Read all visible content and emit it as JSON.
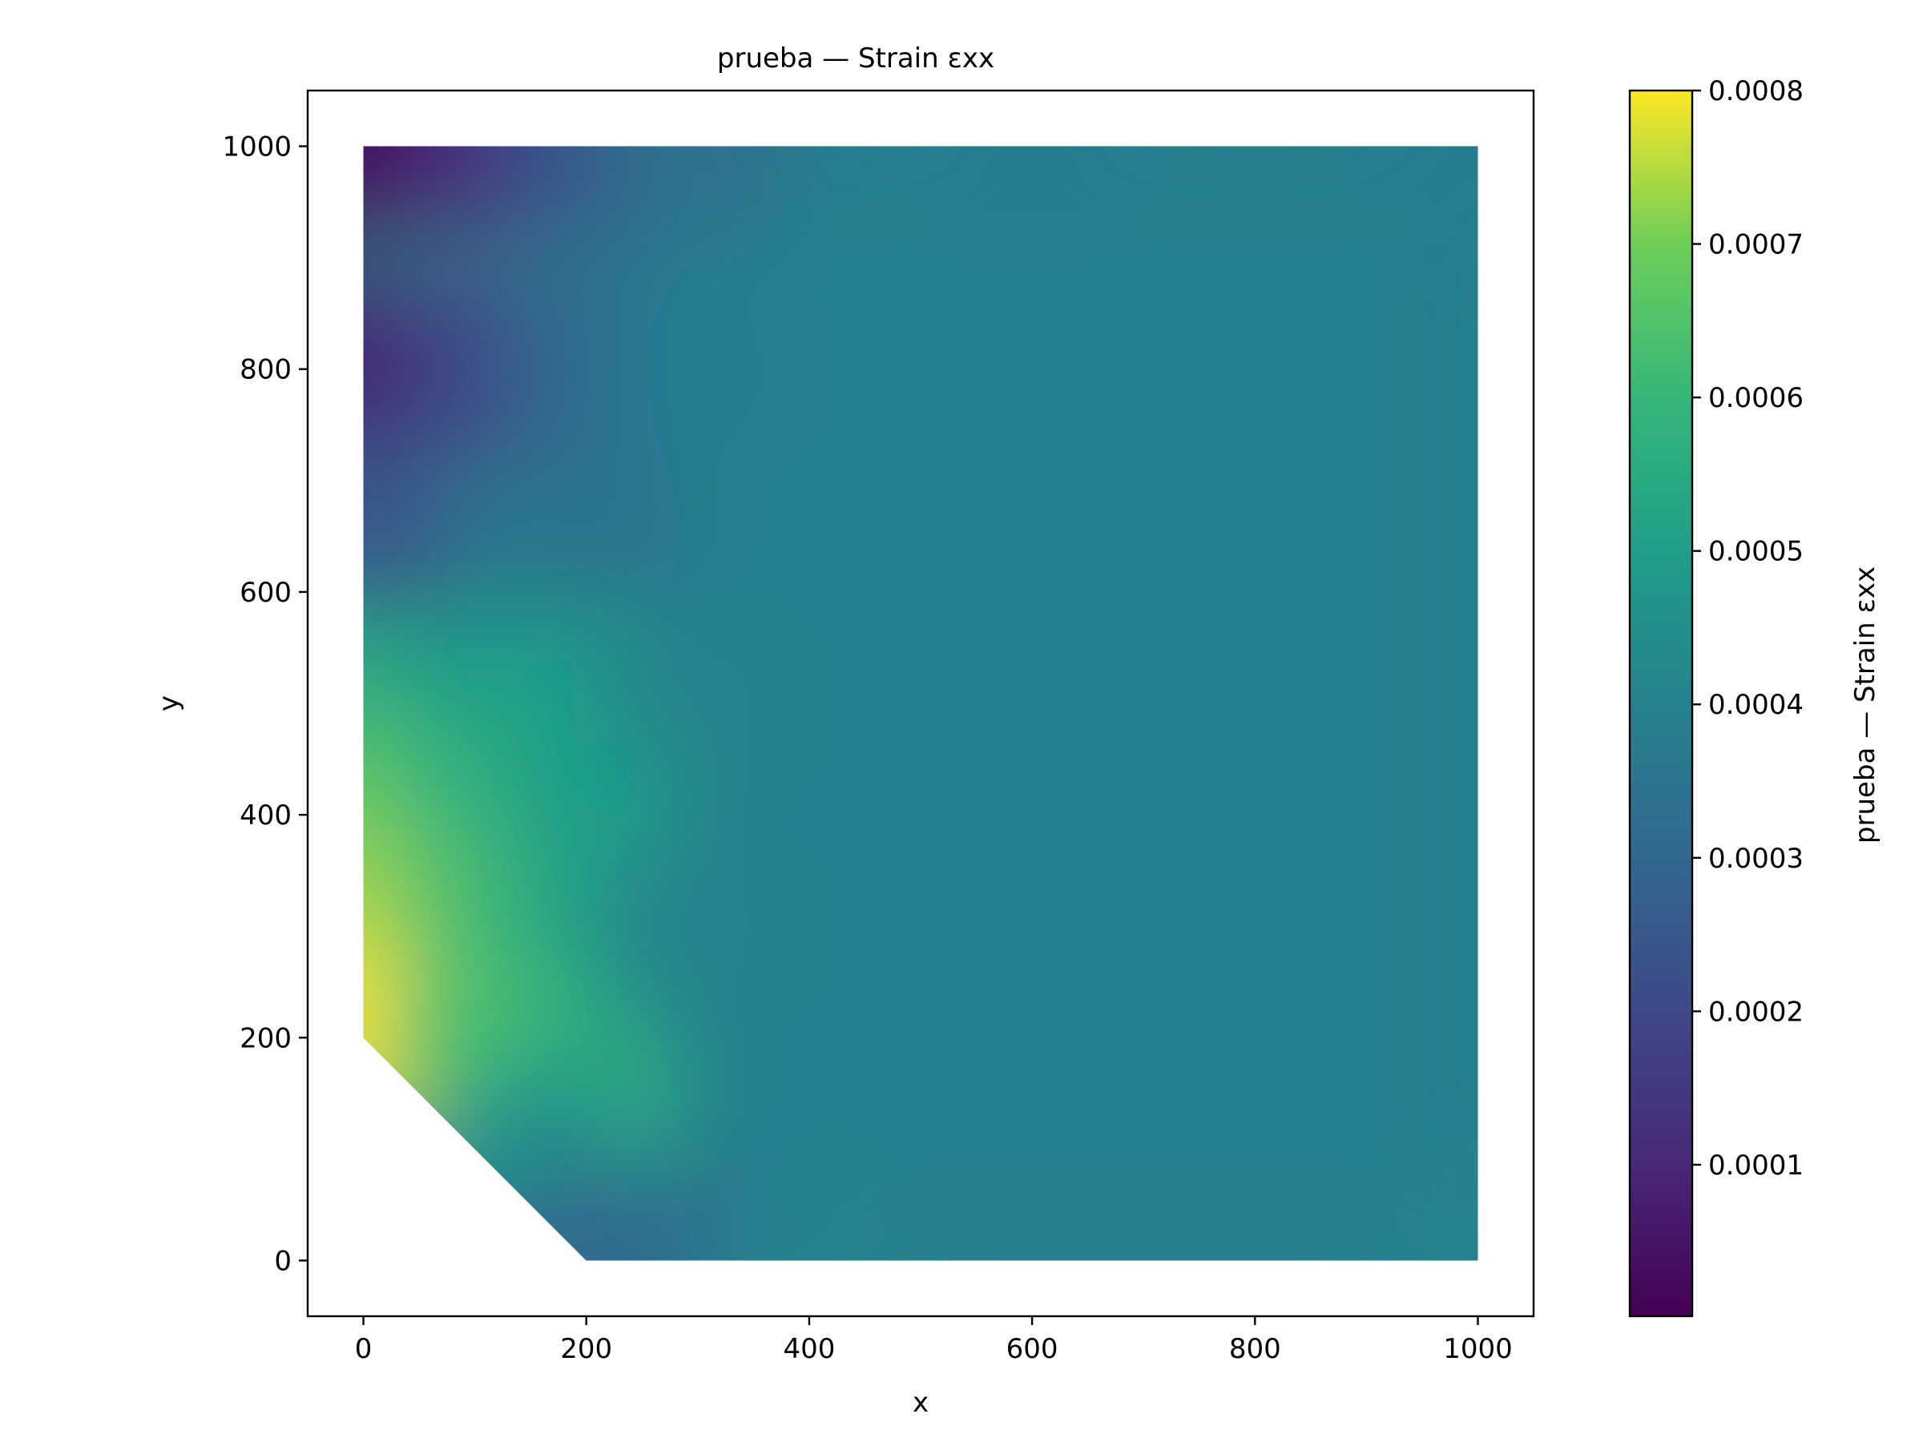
{
  "chart_data": {
    "type": "heatmap",
    "title": "prueba — Strain εxx",
    "xlabel": "x",
    "ylabel": "y",
    "xlim": [
      -50,
      1050
    ],
    "ylim": [
      -50,
      1050
    ],
    "xticks": [
      0,
      200,
      400,
      600,
      800,
      1000
    ],
    "yticks": [
      0,
      200,
      400,
      600,
      800,
      1000
    ],
    "xtick_labels": [
      "0",
      "200",
      "400",
      "600",
      "800",
      "1000"
    ],
    "ytick_labels": [
      "0",
      "200",
      "400",
      "600",
      "800",
      "1000"
    ],
    "grid": false,
    "colormap": "viridis",
    "domain_polygon": [
      [
        200,
        0
      ],
      [
        1000,
        0
      ],
      [
        1000,
        1000
      ],
      [
        0,
        1000
      ],
      [
        0,
        200
      ]
    ],
    "field_samples": [
      {
        "x": 0,
        "y": 1000,
        "value": 0.0
      },
      {
        "x": 100,
        "y": 1000,
        "value": 0.0001
      },
      {
        "x": 200,
        "y": 1000,
        "value": 0.00024
      },
      {
        "x": 300,
        "y": 1000,
        "value": 0.00034
      },
      {
        "x": 600,
        "y": 1000,
        "value": 0.00038
      },
      {
        "x": 1000,
        "y": 1000,
        "value": 0.00038
      },
      {
        "x": 0,
        "y": 800,
        "value": 7e-05
      },
      {
        "x": 100,
        "y": 800,
        "value": 0.00018
      },
      {
        "x": 200,
        "y": 800,
        "value": 0.0003
      },
      {
        "x": 300,
        "y": 800,
        "value": 0.00038
      },
      {
        "x": 0,
        "y": 650,
        "value": 0.00025
      },
      {
        "x": 200,
        "y": 650,
        "value": 0.00035
      },
      {
        "x": 0,
        "y": 500,
        "value": 0.00055
      },
      {
        "x": 100,
        "y": 500,
        "value": 0.0005
      },
      {
        "x": 200,
        "y": 500,
        "value": 0.0005
      },
      {
        "x": 300,
        "y": 500,
        "value": 0.0004
      },
      {
        "x": 0,
        "y": 400,
        "value": 0.00068
      },
      {
        "x": 100,
        "y": 400,
        "value": 0.00058
      },
      {
        "x": 200,
        "y": 400,
        "value": 0.0005
      },
      {
        "x": 0,
        "y": 300,
        "value": 0.00074
      },
      {
        "x": 100,
        "y": 300,
        "value": 0.00064
      },
      {
        "x": 200,
        "y": 300,
        "value": 0.00052
      },
      {
        "x": 300,
        "y": 300,
        "value": 0.0004
      },
      {
        "x": 0,
        "y": 200,
        "value": 0.0008
      },
      {
        "x": 100,
        "y": 200,
        "value": 0.00064
      },
      {
        "x": 200,
        "y": 150,
        "value": 0.00055
      },
      {
        "x": 150,
        "y": 80,
        "value": 0.00045
      },
      {
        "x": 200,
        "y": 0,
        "value": 0.0003
      },
      {
        "x": 300,
        "y": 0,
        "value": 0.00033
      },
      {
        "x": 400,
        "y": 0,
        "value": 0.0004
      },
      {
        "x": 1000,
        "y": 0,
        "value": 0.0004
      },
      {
        "x": 600,
        "y": 500,
        "value": 0.00039
      }
    ],
    "background_value": 0.00039,
    "colorbar": {
      "label": "prueba — Strain εxx",
      "range": [
        1.3e-06,
        0.0008
      ],
      "ticks": [
        0.0001,
        0.0002,
        0.0003,
        0.0004,
        0.0005,
        0.0006,
        0.0007,
        0.0008
      ],
      "tick_labels": [
        "0.0001",
        "0.0002",
        "0.0003",
        "0.0004",
        "0.0005",
        "0.0006",
        "0.0007",
        "0.0008"
      ]
    }
  }
}
